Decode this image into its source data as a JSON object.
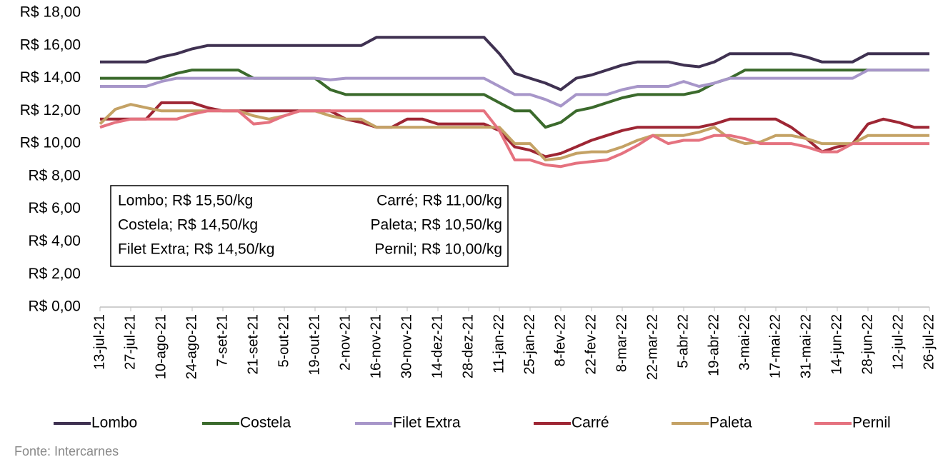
{
  "chart_data": {
    "type": "line",
    "categories": [
      "13-jul-21",
      null,
      "27-jul-21",
      null,
      "10-ago-21",
      null,
      "24-ago-21",
      null,
      "7-set-21",
      null,
      "21-set-21",
      null,
      "5-out-21",
      null,
      "19-out-21",
      null,
      "2-nov-21",
      null,
      "16-nov-21",
      null,
      "30-nov-21",
      null,
      "14-dez-21",
      null,
      "28-dez-21",
      null,
      "11-jan-22",
      null,
      "25-jan-22",
      null,
      "8-fev-22",
      null,
      "22-fev-22",
      null,
      "8-mar-22",
      null,
      "22-mar-22",
      null,
      "5-abr-22",
      null,
      "19-abr-22",
      null,
      "3-mai-22",
      null,
      "17-mai-22",
      null,
      "31-mai-22",
      null,
      "14-jun-22",
      null,
      "28-jun-22",
      null,
      "12-jul-22",
      null,
      "26-jul-22"
    ],
    "series": [
      {
        "name": "Lombo",
        "color": "#3f3151",
        "values": [
          15,
          15,
          15,
          15,
          15.3,
          15.5,
          15.8,
          16,
          16,
          16,
          16,
          16,
          16,
          16,
          16,
          16,
          16,
          16,
          16.5,
          16.5,
          16.5,
          16.5,
          16.5,
          16.5,
          16.5,
          16.5,
          15.5,
          14.3,
          14,
          13.7,
          13.3,
          14,
          14.2,
          14.5,
          14.8,
          15,
          15,
          15,
          14.8,
          14.7,
          15,
          15.5,
          15.5,
          15.5,
          15.5,
          15.5,
          15.3,
          15,
          15,
          15,
          15.5,
          15.5,
          15.5,
          15.5,
          15.5
        ]
      },
      {
        "name": "Costela",
        "color": "#3b6a2c",
        "values": [
          14,
          14,
          14,
          14,
          14,
          14.3,
          14.5,
          14.5,
          14.5,
          14.5,
          14,
          14,
          14,
          14,
          14,
          13.3,
          13,
          13,
          13,
          13,
          13,
          13,
          13,
          13,
          13,
          13,
          12.5,
          12,
          12,
          11,
          11.3,
          12,
          12.2,
          12.5,
          12.8,
          13,
          13,
          13,
          13,
          13.2,
          13.7,
          14,
          14.5,
          14.5,
          14.5,
          14.5,
          14.5,
          14.5,
          14.5,
          14.5,
          14.5,
          14.5,
          14.5,
          14.5,
          14.5
        ]
      },
      {
        "name": "Filet Extra",
        "color": "#a796c9",
        "values": [
          13.5,
          13.5,
          13.5,
          13.5,
          13.8,
          14,
          14,
          14,
          14,
          14,
          14,
          14,
          14,
          14,
          14,
          13.9,
          14,
          14,
          14,
          14,
          14,
          14,
          14,
          14,
          14,
          14,
          13.5,
          13,
          13,
          12.7,
          12.3,
          13,
          13,
          13,
          13.3,
          13.5,
          13.5,
          13.5,
          13.8,
          13.5,
          13.7,
          14,
          14,
          14,
          14,
          14,
          14,
          14,
          14,
          14,
          14.5,
          14.5,
          14.5,
          14.5,
          14.5
        ]
      },
      {
        "name": "Carré",
        "color": "#9e2634",
        "values": [
          11.5,
          11.5,
          11.5,
          11.5,
          12.5,
          12.5,
          12.5,
          12.2,
          12,
          12,
          12,
          12,
          12,
          12,
          12,
          12,
          11.5,
          11.3,
          11,
          11,
          11.5,
          11.5,
          11.2,
          11.2,
          11.2,
          11.2,
          10.8,
          9.8,
          9.6,
          9.2,
          9.4,
          9.8,
          10.2,
          10.5,
          10.8,
          11,
          11,
          11,
          11,
          11,
          11.2,
          11.5,
          11.5,
          11.5,
          11.5,
          11,
          10.3,
          9.5,
          9.8,
          10,
          11.2,
          11.5,
          11.3,
          11,
          11
        ]
      },
      {
        "name": "Paleta",
        "color": "#c4a265",
        "values": [
          11.2,
          12.1,
          12.4,
          12.2,
          12,
          12,
          12,
          12,
          12,
          12,
          11.7,
          11.5,
          11.7,
          12,
          12,
          11.7,
          11.5,
          11.5,
          11,
          11,
          11,
          11,
          11,
          11,
          11,
          11,
          11,
          10,
          10,
          9,
          9.1,
          9.4,
          9.5,
          9.5,
          9.8,
          10.2,
          10.5,
          10.5,
          10.5,
          10.7,
          11,
          10.3,
          10,
          10.1,
          10.5,
          10.5,
          10.3,
          10,
          10,
          10,
          10.5,
          10.5,
          10.5,
          10.5,
          10.5
        ]
      },
      {
        "name": "Pernil",
        "color": "#e5727f",
        "values": [
          11,
          11.3,
          11.5,
          11.5,
          11.5,
          11.5,
          11.8,
          12,
          12,
          12,
          11.2,
          11.3,
          11.7,
          12,
          12,
          12,
          12,
          12,
          12,
          12,
          12,
          12,
          12,
          12,
          12,
          12,
          10.8,
          9,
          9,
          8.7,
          8.6,
          8.8,
          8.9,
          9,
          9.4,
          9.9,
          10.5,
          10,
          10.2,
          10.2,
          10.5,
          10.5,
          10.3,
          10,
          10,
          10,
          9.8,
          9.5,
          9.5,
          10,
          10,
          10,
          10,
          10,
          10
        ]
      }
    ],
    "ylim": [
      0,
      18
    ],
    "yticks": [
      {
        "value": 0,
        "label": "R$ 0,00"
      },
      {
        "value": 2,
        "label": "R$ 2,00"
      },
      {
        "value": 4,
        "label": "R$ 4,00"
      },
      {
        "value": 6,
        "label": "R$ 6,00"
      },
      {
        "value": 8,
        "label": "R$ 8,00"
      },
      {
        "value": 10,
        "label": "R$ 10,00"
      },
      {
        "value": 12,
        "label": "R$ 12,00"
      },
      {
        "value": 14,
        "label": "R$ 14,00"
      },
      {
        "value": 16,
        "label": "R$ 16,00"
      },
      {
        "value": 18,
        "label": "R$ 18,00"
      }
    ],
    "grid": false,
    "annotations": [
      "Lombo; R$ 15,50/kg",
      "Costela; R$ 14,50/kg",
      "Filet Extra; R$ 14,50/kg",
      "Carré; R$ 11,00/kg",
      "Paleta; R$ 10,50/kg",
      "Pernil; R$ 10,00/kg"
    ],
    "source": "Fonte: Intercarnes"
  }
}
